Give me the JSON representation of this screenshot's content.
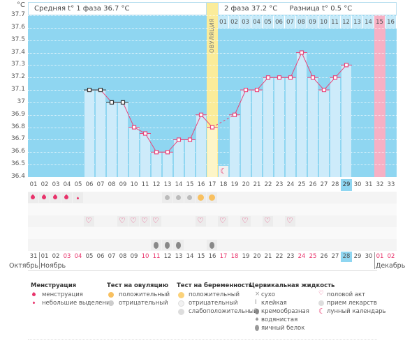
{
  "chart_data": {
    "type": "line",
    "ylabel": "°C",
    "ylim": [
      36.4,
      37.7
    ],
    "yticks": [
      "37.7",
      "37.6",
      "37.5",
      "37.4",
      "37.3",
      "37.2",
      "37.1",
      "37",
      "36.9",
      "36.8",
      "36.7",
      "36.6",
      "36.5",
      "36.4"
    ],
    "cycle_days": [
      "01",
      "02",
      "03",
      "04",
      "05",
      "06",
      "07",
      "08",
      "09",
      "10",
      "11",
      "12",
      "13",
      "14",
      "15",
      "16",
      "17",
      "18",
      "19",
      "20",
      "21",
      "22",
      "23",
      "24",
      "25",
      "26",
      "27",
      "28",
      "29",
      "30",
      "31",
      "32",
      "33"
    ],
    "values": [
      null,
      null,
      null,
      null,
      null,
      37.1,
      37.1,
      37.0,
      37.0,
      36.8,
      36.75,
      36.6,
      36.6,
      36.7,
      36.7,
      36.9,
      36.8,
      null,
      36.9,
      37.1,
      37.1,
      37.2,
      37.2,
      37.2,
      37.4,
      37.2,
      37.1,
      37.2,
      37.3,
      null,
      null,
      null,
      null
    ],
    "first_phase_days_with_black_markers": [
      6,
      7,
      8,
      9
    ],
    "ovulation_day": 17,
    "current_day": 29,
    "phase2_days": [
      "01",
      "02",
      "03",
      "04",
      "05",
      "06",
      "07",
      "08",
      "09",
      "10",
      "11",
      "12",
      "13",
      "14",
      "15",
      "16"
    ],
    "phase2_highlight_day": 15,
    "grid": true
  },
  "header": {
    "phase1": "Средняя t° 1 фаза 36.7 °C",
    "phase2": "2 фаза 37.2 °C",
    "difference": "Разница t° 0.5 °C",
    "ovulation_label": "ОВУЛЯЦИЯ"
  },
  "markers": {
    "menstruation": [
      1,
      2,
      3,
      4
    ],
    "spotting": [
      5
    ],
    "ovulation_negative": [
      13,
      14,
      15
    ],
    "ovulation_positive": [
      16,
      17
    ],
    "intercourse": [
      6,
      9,
      10,
      11,
      12,
      16,
      18,
      20,
      22,
      24
    ],
    "egg_white": [
      12,
      13,
      14,
      17
    ],
    "lunar": [
      18
    ]
  },
  "calendar": {
    "dates": [
      "31",
      "01",
      "02",
      "03",
      "04",
      "05",
      "06",
      "07",
      "08",
      "09",
      "10",
      "11",
      "12",
      "13",
      "14",
      "15",
      "16",
      "17",
      "18",
      "19",
      "20",
      "21",
      "22",
      "23",
      "24",
      "25",
      "26",
      "27",
      "28",
      "29",
      "30",
      "01",
      "02"
    ],
    "weekend_columns": [
      4,
      5,
      11,
      12,
      18,
      19,
      25,
      26,
      32,
      33
    ],
    "today_column": 29,
    "months": [
      {
        "label": "Октябрь",
        "start": 1
      },
      {
        "label": "Ноябрь",
        "start": 2
      },
      {
        "label": "Декабрь",
        "start": 32
      }
    ]
  },
  "legend": {
    "menstruation": {
      "title": "Менструация",
      "items": [
        "менструация",
        "небольшие выделения"
      ]
    },
    "ovulation_test": {
      "title": "Тест на овуляцию",
      "items": [
        "положительный",
        "отрицательный"
      ]
    },
    "pregnancy_test": {
      "title": "Тест на беременность",
      "items": [
        "положительный",
        "отрицательный",
        "слабоположительный"
      ]
    },
    "cervical": {
      "title": "Цервикальная жидкость",
      "items": [
        "сухо",
        "клейкая",
        "кремообразная",
        "водянистая",
        "яичный белок"
      ]
    },
    "other": {
      "items": [
        "половой акт",
        "прием лекарств",
        "лунный календарь"
      ]
    }
  },
  "colors": {
    "plot_bg": "#8fd6f1",
    "bar": "#cdebfa",
    "ovulation": "#fbec9a",
    "line": "#e8457a",
    "highlight": "#f7b0c4",
    "weekend": "#e8336b"
  }
}
